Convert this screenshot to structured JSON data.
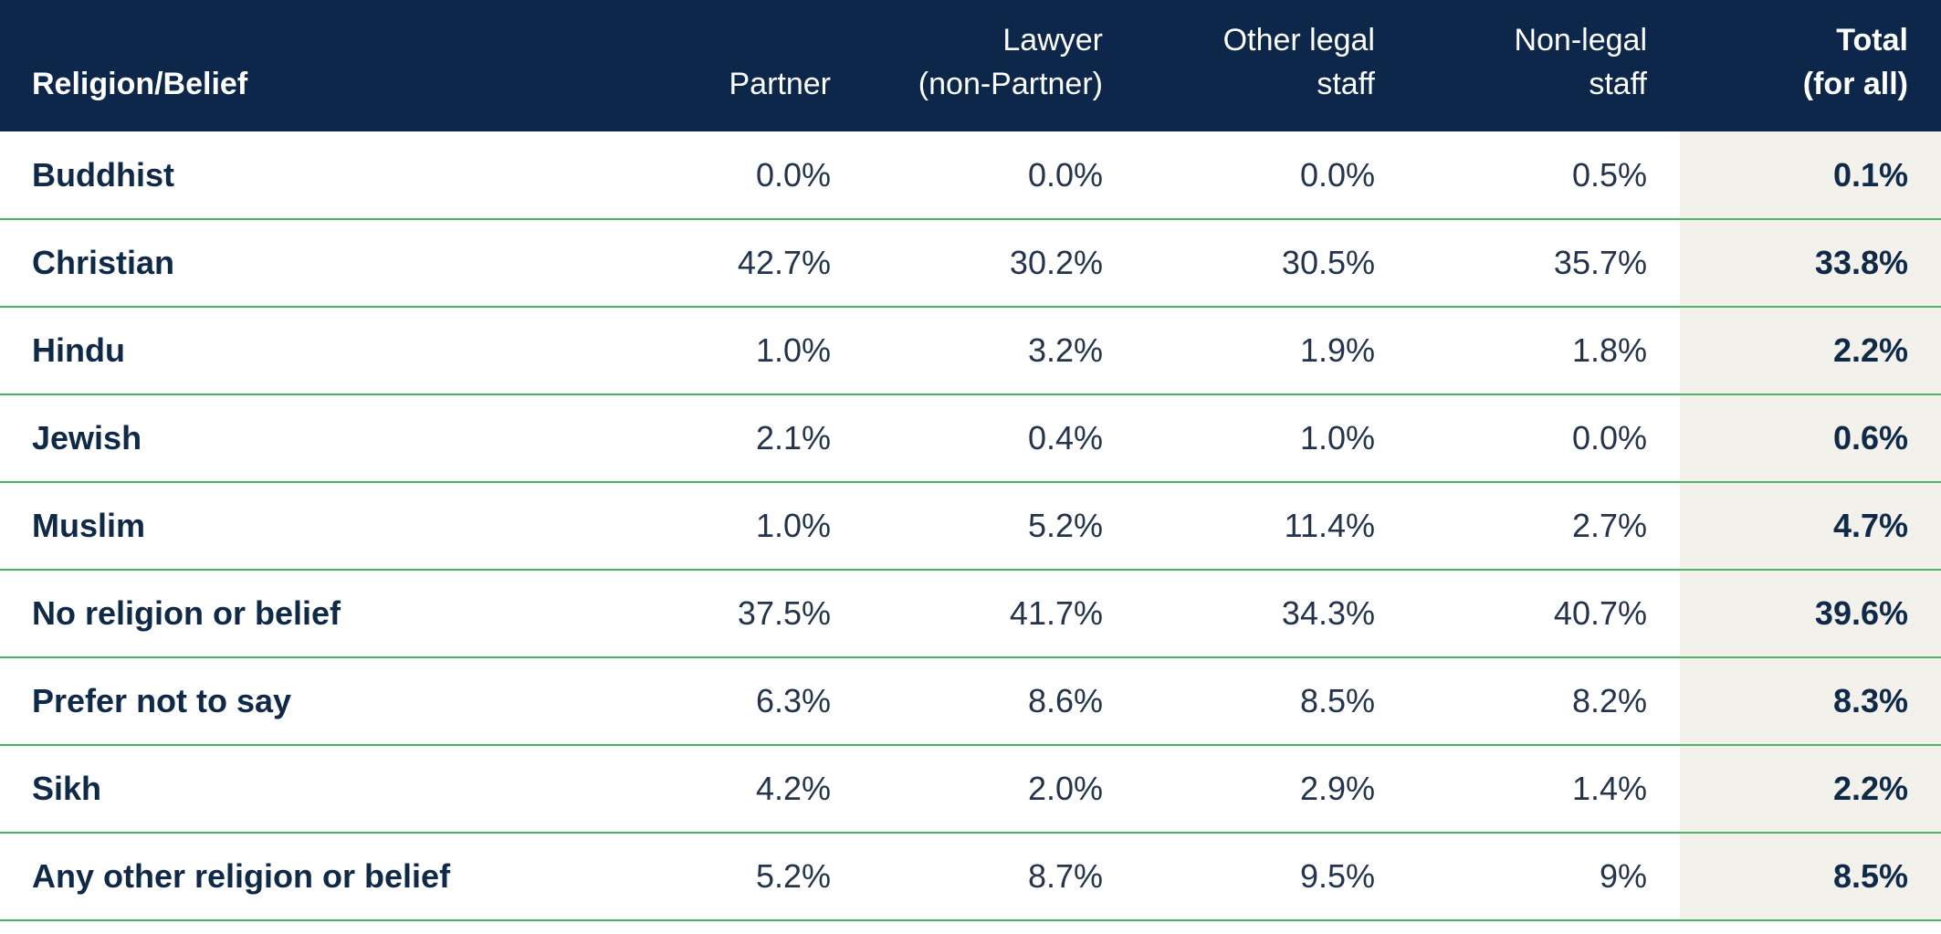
{
  "table": {
    "headers": {
      "religion": [
        "Religion/Belief"
      ],
      "partner": [
        "Partner"
      ],
      "lawyer": [
        "Lawyer",
        "(non-Partner)"
      ],
      "other_legal": [
        "Other legal",
        "staff"
      ],
      "non_legal": [
        "Non-legal",
        "staff"
      ],
      "total": [
        "Total",
        "(for all)"
      ]
    },
    "rows": [
      {
        "label": "Buddhist",
        "partner": "0.0%",
        "lawyer": "0.0%",
        "other_legal": "0.0%",
        "non_legal": "0.5%",
        "total": "0.1%"
      },
      {
        "label": "Christian",
        "partner": "42.7%",
        "lawyer": "30.2%",
        "other_legal": "30.5%",
        "non_legal": "35.7%",
        "total": "33.8%"
      },
      {
        "label": "Hindu",
        "partner": "1.0%",
        "lawyer": "3.2%",
        "other_legal": "1.9%",
        "non_legal": "1.8%",
        "total": "2.2%"
      },
      {
        "label": "Jewish",
        "partner": "2.1%",
        "lawyer": "0.4%",
        "other_legal": "1.0%",
        "non_legal": "0.0%",
        "total": "0.6%"
      },
      {
        "label": "Muslim",
        "partner": "1.0%",
        "lawyer": "5.2%",
        "other_legal": "11.4%",
        "non_legal": "2.7%",
        "total": "4.7%"
      },
      {
        "label": "No religion or belief",
        "partner": "37.5%",
        "lawyer": "41.7%",
        "other_legal": "34.3%",
        "non_legal": "40.7%",
        "total": "39.6%"
      },
      {
        "label": "Prefer not to say",
        "partner": "6.3%",
        "lawyer": "8.6%",
        "other_legal": "8.5%",
        "non_legal": "8.2%",
        "total": "8.3%"
      },
      {
        "label": "Sikh",
        "partner": "4.2%",
        "lawyer": "2.0%",
        "other_legal": "2.9%",
        "non_legal": "1.4%",
        "total": "2.2%"
      },
      {
        "label": "Any other religion or belief",
        "partner": "5.2%",
        "lawyer": "8.7%",
        "other_legal": "9.5%",
        "non_legal": "9%",
        "total": "8.5%"
      }
    ]
  },
  "colors": {
    "header_bg": "#0c2749",
    "header_text": "#ffffff",
    "row_divider": "#4db85a",
    "total_column_bg": "#f2f1ec",
    "text_dark": "#0f2949"
  }
}
